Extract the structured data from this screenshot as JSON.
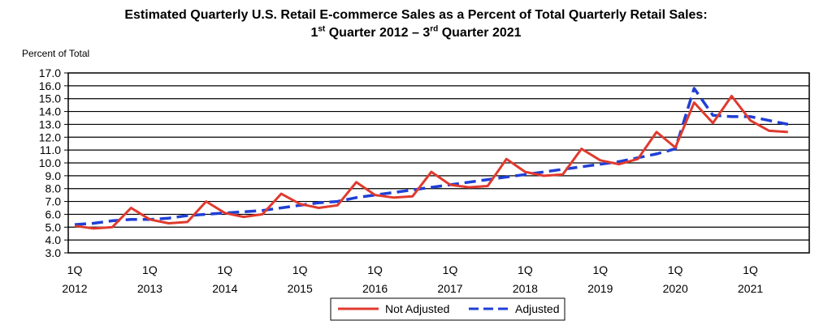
{
  "chart_data": {
    "type": "line",
    "title_line1": "Estimated Quarterly U.S. Retail E-commerce Sales as a Percent of Total Quarterly Retail Sales:",
    "title_line2": {
      "q1_num": "1",
      "q1_sup": "st",
      "mid": " Quarter 2012 – 3",
      "q3_sup": "rd",
      "end": " Quarter 2021"
    },
    "ylabel": "Percent of Total",
    "ylim": [
      3.0,
      17.0
    ],
    "y_ticks": [
      "3.0",
      "4.0",
      "5.0",
      "6.0",
      "7.0",
      "8.0",
      "9.0",
      "10.0",
      "11.0",
      "12.0",
      "13.0",
      "14.0",
      "15.0",
      "16.0",
      "17.0"
    ],
    "grid": "horizontal",
    "x_tick_labels": [
      {
        "quarter": "1Q",
        "year": "2012"
      },
      {
        "quarter": "1Q",
        "year": "2013"
      },
      {
        "quarter": "1Q",
        "year": "2014"
      },
      {
        "quarter": "1Q",
        "year": "2015"
      },
      {
        "quarter": "1Q",
        "year": "2016"
      },
      {
        "quarter": "1Q",
        "year": "2017"
      },
      {
        "quarter": "1Q",
        "year": "2018"
      },
      {
        "quarter": "1Q",
        "year": "2019"
      },
      {
        "quarter": "1Q",
        "year": "2020"
      },
      {
        "quarter": "1Q",
        "year": "2021"
      }
    ],
    "x": [
      "2012Q1",
      "2012Q2",
      "2012Q3",
      "2012Q4",
      "2013Q1",
      "2013Q2",
      "2013Q3",
      "2013Q4",
      "2014Q1",
      "2014Q2",
      "2014Q3",
      "2014Q4",
      "2015Q1",
      "2015Q2",
      "2015Q3",
      "2015Q4",
      "2016Q1",
      "2016Q2",
      "2016Q3",
      "2016Q4",
      "2017Q1",
      "2017Q2",
      "2017Q3",
      "2017Q4",
      "2018Q1",
      "2018Q2",
      "2018Q3",
      "2018Q4",
      "2019Q1",
      "2019Q2",
      "2019Q3",
      "2019Q4",
      "2020Q1",
      "2020Q2",
      "2020Q3",
      "2020Q4",
      "2021Q1",
      "2021Q2",
      "2021Q3"
    ],
    "legend_position": "bottom",
    "series": [
      {
        "name": "Not Adjusted",
        "color": "#e03a2e",
        "style": "solid",
        "values": [
          5.1,
          4.9,
          5.0,
          6.5,
          5.6,
          5.3,
          5.4,
          7.0,
          6.1,
          5.8,
          6.0,
          7.6,
          6.8,
          6.5,
          6.7,
          8.5,
          7.5,
          7.3,
          7.4,
          9.3,
          8.3,
          8.1,
          8.2,
          10.3,
          9.3,
          9.0,
          9.1,
          11.1,
          10.2,
          9.9,
          10.3,
          12.4,
          11.2,
          14.7,
          13.1,
          15.2,
          13.3,
          12.5,
          12.4
        ]
      },
      {
        "name": "Adjusted",
        "color": "#1f3fd6",
        "style": "dashed",
        "values": [
          5.2,
          5.3,
          5.5,
          5.6,
          5.6,
          5.7,
          5.9,
          6.0,
          6.1,
          6.2,
          6.3,
          6.5,
          6.7,
          6.9,
          7.0,
          7.3,
          7.5,
          7.7,
          7.9,
          8.1,
          8.3,
          8.5,
          8.7,
          8.9,
          9.1,
          9.3,
          9.5,
          9.7,
          9.9,
          10.1,
          10.4,
          10.7,
          11.1,
          15.8,
          13.7,
          13.6,
          13.6,
          13.3,
          13.0
        ]
      }
    ]
  }
}
